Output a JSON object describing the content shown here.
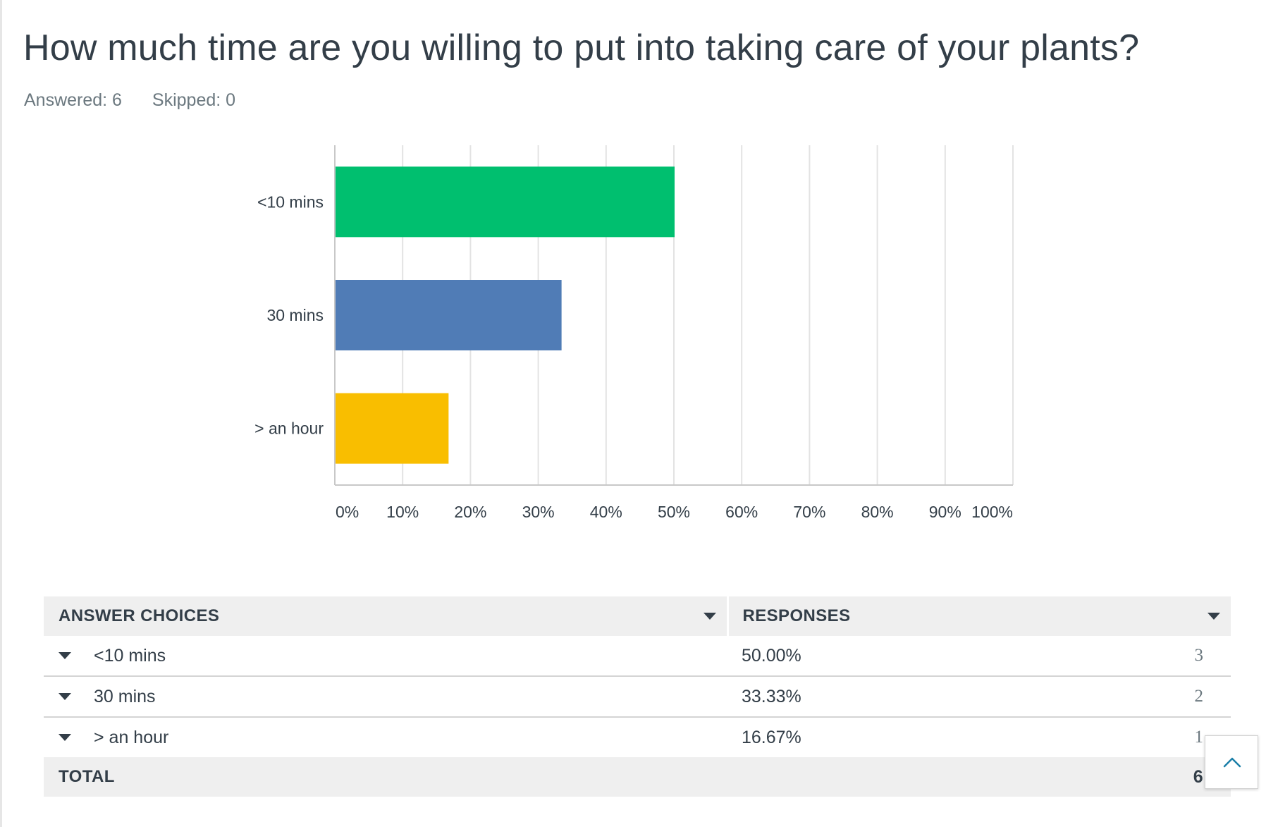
{
  "question": {
    "title": "How much time are you willing to put into taking care of your plants?",
    "answered": "Answered: 6",
    "skipped": "Skipped: 0"
  },
  "colors": {
    "text": "#333e48",
    "muted": "#6b787f",
    "grid": "#e3e3e3",
    "header_bg": "#efefef"
  },
  "chart_data": {
    "type": "bar",
    "orientation": "horizontal",
    "categories": [
      "<10 mins",
      "30 mins",
      "> an hour"
    ],
    "values": [
      50.0,
      33.33,
      16.67
    ],
    "bar_colors": [
      "#00bf6f",
      "#507cb6",
      "#f9be00"
    ],
    "xlim": [
      0,
      100
    ],
    "x_ticks": [
      "0%",
      "10%",
      "20%",
      "30%",
      "40%",
      "50%",
      "60%",
      "70%",
      "80%",
      "90%",
      "100%"
    ],
    "grid": true
  },
  "table": {
    "headers": {
      "choice": "ANSWER CHOICES",
      "responses": "RESPONSES"
    },
    "rows": [
      {
        "choice": "<10 mins",
        "pct": "50.00%",
        "count": "3"
      },
      {
        "choice": "30 mins",
        "pct": "33.33%",
        "count": "2"
      },
      {
        "choice": "> an hour",
        "pct": "16.67%",
        "count": "1"
      }
    ],
    "total_label": "TOTAL",
    "total_value": "6"
  },
  "scroll_top_icon": "chevron-up-icon"
}
